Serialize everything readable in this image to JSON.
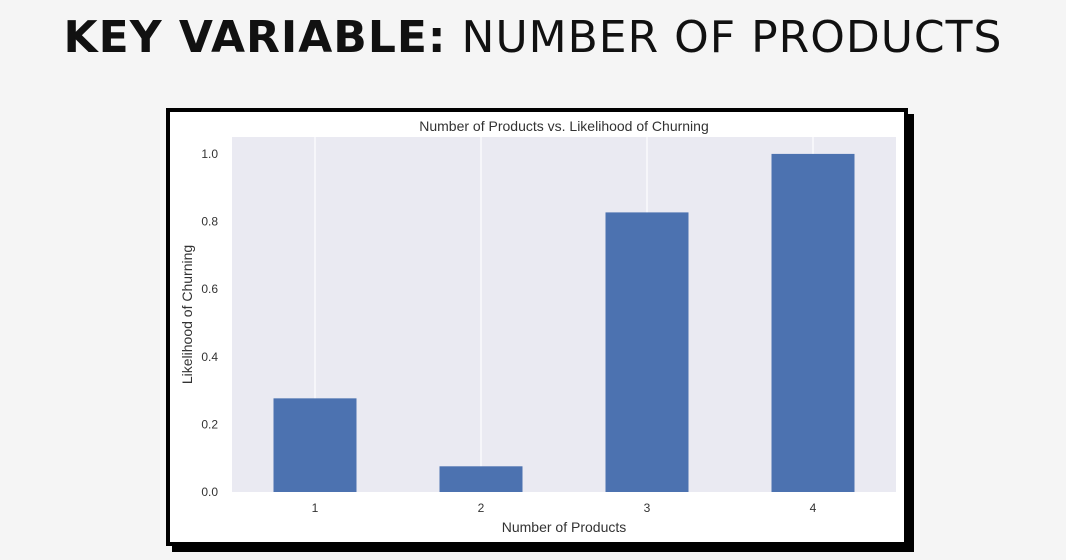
{
  "heading": {
    "strong": "KEY VARIABLE:",
    "light": "NUMBER OF PRODUCTS"
  },
  "colors": {
    "bar": "#4c72b0",
    "plot_background": "#eaeaf2",
    "gridline": "#ffffff"
  },
  "chart_data": {
    "type": "bar",
    "title": "Number of Products vs. Likelihood of Churning",
    "xlabel": "Number of Products",
    "ylabel": "Likelihood of Churning",
    "categories": [
      "1",
      "2",
      "3",
      "4"
    ],
    "values": [
      0.277,
      0.076,
      0.827,
      1.0
    ],
    "ylim": [
      0,
      1.05
    ],
    "yticks": [
      "0.0",
      "0.2",
      "0.4",
      "0.6",
      "0.8",
      "1.0"
    ],
    "grid": "vertical",
    "legend": "none"
  }
}
